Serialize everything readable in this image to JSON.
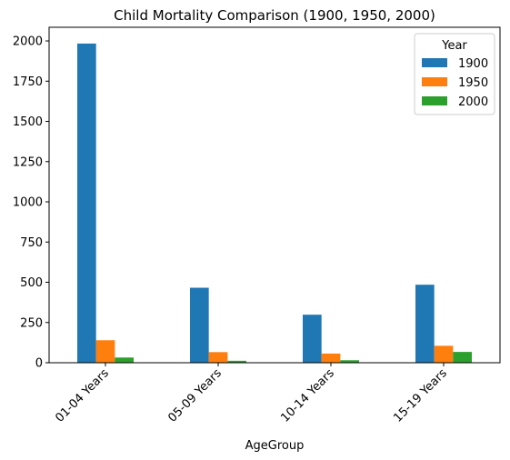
{
  "chart_data": {
    "type": "bar",
    "title": "Child Mortality Comparison (1900, 1950, 2000)",
    "xlabel": "AgeGroup",
    "ylabel": "",
    "categories": [
      "01-04 Years",
      "05-09 Years",
      "10-14 Years",
      "15-19 Years"
    ],
    "ylim": [
      0,
      2085
    ],
    "yticks": [
      0,
      250,
      500,
      750,
      1000,
      1250,
      1500,
      1750,
      2000
    ],
    "legend": {
      "title": "Year",
      "placement": "top-right"
    },
    "grid": false,
    "series": [
      {
        "name": "1900",
        "color": "#1f77b4",
        "values": [
          1983.8,
          466.1,
          298.4,
          484.8
        ]
      },
      {
        "name": "1950",
        "color": "#ff7f0e",
        "values": [
          139.8,
          66.0,
          57.0,
          105.3
        ]
      },
      {
        "name": "2000",
        "color": "#2ca02c",
        "values": [
          32.4,
          12.1,
          15.4,
          67.1
        ]
      }
    ]
  }
}
